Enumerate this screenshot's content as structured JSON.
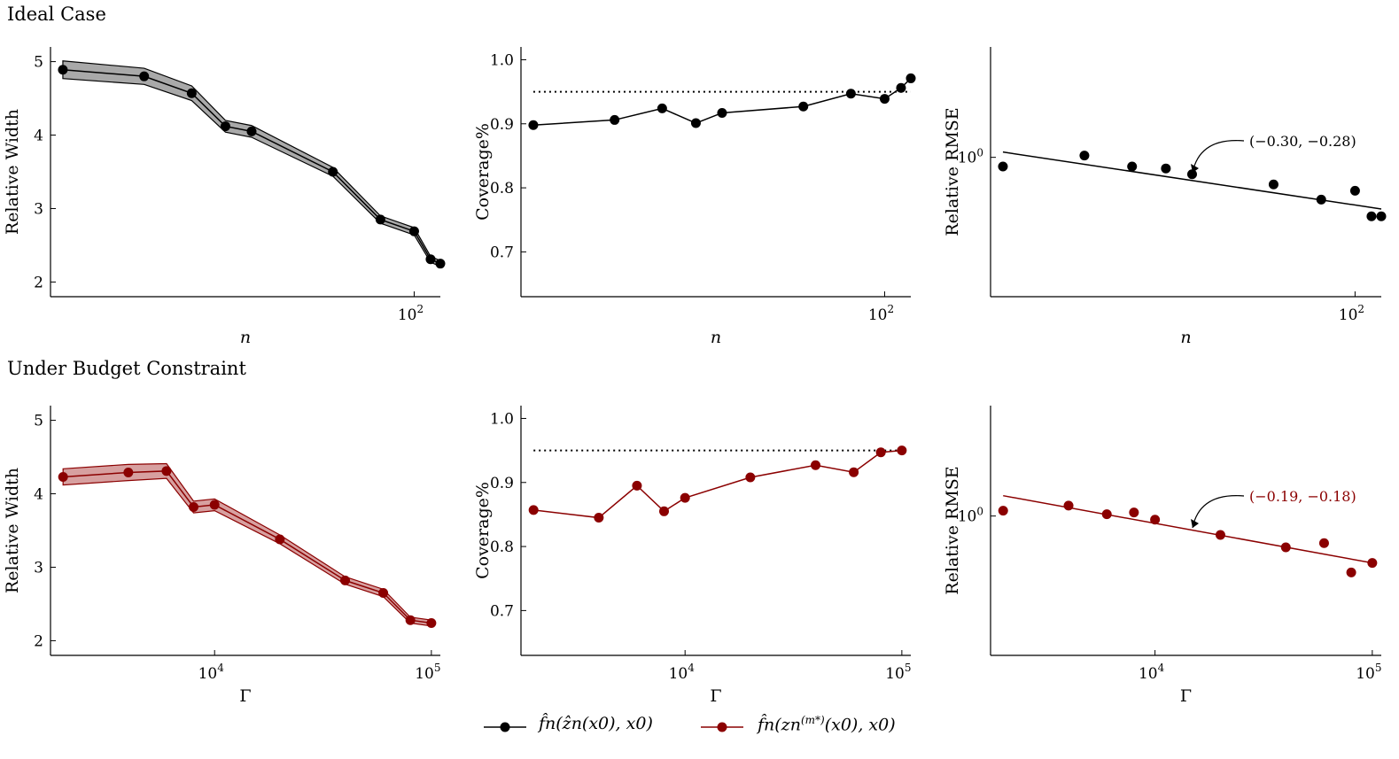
{
  "row_titles": {
    "top": "Ideal Case",
    "bottom": "Under Budget Constraint"
  },
  "legend": {
    "black": {
      "label": "f̂n(ẑn(x0), x0)",
      "color": "#000000"
    },
    "red": {
      "label_main": "f̂n(zn",
      "label_sup": "(m*)",
      "label_tail": "(x0), x0)",
      "color": "#8b0000"
    }
  },
  "colors": {
    "black": "#000000",
    "red": "#8b0000",
    "red_band": "#c98080",
    "gray_band": "#8c8c8c"
  },
  "chart_data": [
    {
      "id": "top-width",
      "type": "line",
      "xscale": "log",
      "xlim": [
        4.5,
        125
      ],
      "ylim": [
        1.8,
        5.2
      ],
      "xticks": [
        {
          "v": 100,
          "base": "10",
          "exp": "2"
        }
      ],
      "yticks": [
        2,
        3,
        4,
        5
      ],
      "ytick_labels": [
        "2",
        "3",
        "4",
        "5"
      ],
      "xlabel": "n",
      "ylabel": "Relative Width",
      "color": "black",
      "band": true,
      "x": [
        5,
        10,
        15,
        20,
        25,
        50,
        75,
        100,
        115,
        125
      ],
      "y": [
        4.89,
        4.8,
        4.57,
        4.12,
        4.05,
        3.5,
        2.85,
        2.69,
        2.31,
        2.25
      ],
      "band_half": [
        0.12,
        0.11,
        0.1,
        0.08,
        0.08,
        0.06,
        0.05,
        0.05,
        0.04,
        0.04
      ]
    },
    {
      "id": "top-coverage",
      "type": "line",
      "xscale": "log",
      "xlim": [
        4.5,
        125
      ],
      "ylim": [
        0.63,
        1.02
      ],
      "xticks": [
        {
          "v": 100,
          "base": "10",
          "exp": "2"
        }
      ],
      "yticks": [
        0.7,
        0.8,
        0.9,
        1.0
      ],
      "ytick_labels": [
        "0.7",
        "0.8",
        "0.9",
        "1.0"
      ],
      "xlabel": "n",
      "ylabel": "Coverage%",
      "color": "black",
      "ref_line": 0.95,
      "x": [
        5,
        10,
        15,
        20,
        25,
        50,
        75,
        100,
        115,
        125
      ],
      "y": [
        0.898,
        0.906,
        0.924,
        0.901,
        0.917,
        0.927,
        0.947,
        0.939,
        0.956,
        0.971
      ]
    },
    {
      "id": "top-rmse",
      "type": "scatter",
      "xscale": "log",
      "yscale": "log",
      "xlim": [
        4.5,
        125
      ],
      "ylim": [
        0.46,
        1.85
      ],
      "xticks": [
        {
          "v": 100,
          "base": "10",
          "exp": "2"
        }
      ],
      "yticks": [
        1.0
      ],
      "ytick_labels": [
        "10^0"
      ],
      "xlabel": "n",
      "ylabel": "Relative RMSE",
      "color": "black",
      "x": [
        5,
        10,
        15,
        20,
        25,
        50,
        75,
        100,
        115,
        125
      ],
      "y": [
        0.95,
        1.01,
        0.95,
        0.94,
        0.91,
        0.86,
        0.79,
        0.83,
        0.72,
        0.72
      ],
      "fit": {
        "x": [
          5,
          125
        ],
        "y": [
          1.03,
          0.75
        ]
      },
      "annotation": "(−0.30, −0.28)"
    },
    {
      "id": "bottom-width",
      "type": "line",
      "xscale": "log",
      "xlim": [
        1750,
        110000
      ],
      "ylim": [
        1.8,
        5.2
      ],
      "xticks": [
        {
          "v": 10000,
          "base": "10",
          "exp": "4"
        },
        {
          "v": 100000,
          "base": "10",
          "exp": "5"
        }
      ],
      "yticks": [
        2,
        3,
        4,
        5
      ],
      "ytick_labels": [
        "2",
        "3",
        "4",
        "5"
      ],
      "xlabel": "Γ",
      "ylabel": "Relative Width",
      "color": "red",
      "band": true,
      "x": [
        2000,
        4000,
        6000,
        8000,
        10000,
        20000,
        40000,
        60000,
        80000,
        100000
      ],
      "y": [
        4.23,
        4.29,
        4.31,
        3.82,
        3.85,
        3.38,
        2.82,
        2.65,
        2.28,
        2.24
      ],
      "band_half": [
        0.11,
        0.11,
        0.1,
        0.08,
        0.08,
        0.06,
        0.05,
        0.05,
        0.04,
        0.04
      ]
    },
    {
      "id": "bottom-coverage",
      "type": "line",
      "xscale": "log",
      "xlim": [
        1750,
        110000
      ],
      "ylim": [
        0.63,
        1.02
      ],
      "xticks": [
        {
          "v": 10000,
          "base": "10",
          "exp": "4"
        },
        {
          "v": 100000,
          "base": "10",
          "exp": "5"
        }
      ],
      "yticks": [
        0.7,
        0.8,
        0.9,
        1.0
      ],
      "ytick_labels": [
        "0.7",
        "0.8",
        "0.9",
        "1.0"
      ],
      "xlabel": "Γ",
      "ylabel": "Coverage%",
      "color": "red",
      "ref_line": 0.95,
      "x": [
        2000,
        4000,
        6000,
        8000,
        10000,
        20000,
        40000,
        60000,
        80000,
        100000
      ],
      "y": [
        0.857,
        0.845,
        0.895,
        0.855,
        0.876,
        0.908,
        0.927,
        0.916,
        0.947,
        0.95
      ]
    },
    {
      "id": "bottom-rmse",
      "type": "scatter",
      "xscale": "log",
      "yscale": "log",
      "xlim": [
        1750,
        110000
      ],
      "ylim": [
        0.46,
        1.85
      ],
      "xticks": [
        {
          "v": 10000,
          "base": "10",
          "exp": "4"
        },
        {
          "v": 100000,
          "base": "10",
          "exp": "5"
        }
      ],
      "yticks": [
        1.0
      ],
      "ytick_labels": [
        "10^0"
      ],
      "xlabel": "Γ",
      "ylabel": "Relative RMSE",
      "color": "red",
      "x": [
        2000,
        4000,
        6000,
        8000,
        10000,
        20000,
        40000,
        60000,
        80000,
        100000
      ],
      "y": [
        1.03,
        1.06,
        1.01,
        1.02,
        0.98,
        0.9,
        0.84,
        0.86,
        0.73,
        0.77
      ],
      "fit": {
        "x": [
          2000,
          100000
        ],
        "y": [
          1.12,
          0.77
        ]
      },
      "annotation": "(−0.19, −0.18)"
    }
  ]
}
